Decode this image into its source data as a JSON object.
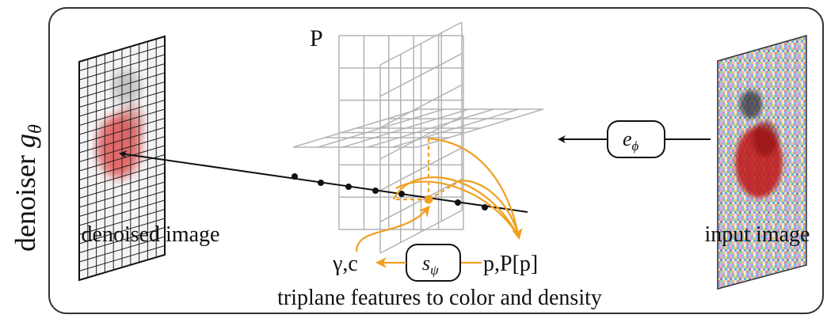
{
  "side_label": {
    "main": "denoiser ",
    "symbol": "g",
    "subscript": "θ"
  },
  "labels": {
    "denoised_image": "denoised image",
    "input_image": "input image",
    "triplane": "P",
    "features": "p,P[p]",
    "output": "γ,c",
    "caption": "triplane features to color and density"
  },
  "encoder": {
    "symbol": "e",
    "subscript": "ϕ"
  },
  "mlp": {
    "symbol": "s",
    "subscript": "ψ"
  },
  "colors": {
    "frame": "#333333",
    "grid": "#b3b3b3",
    "accent": "#f0a020",
    "ray": "#111111",
    "denoised_blob": "#e05252",
    "noisy_blob": "#c01818"
  },
  "icons": [
    "denoised-image-grid",
    "noisy-input-image",
    "triplane-grid",
    "ray-line",
    "arrow-icon"
  ]
}
